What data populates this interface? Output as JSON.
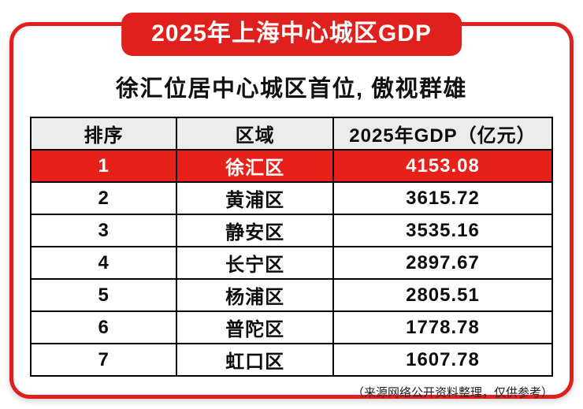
{
  "banner": {
    "title": "2025年上海中心城区GDP"
  },
  "subtitle": "徐汇位居中心城区首位, 傲视群雄",
  "table": {
    "headers": [
      "排序",
      "区域",
      "2025年GDP（亿元）"
    ],
    "rows": [
      {
        "rank": "1",
        "district": "徐汇区",
        "gdp": "4153.08"
      },
      {
        "rank": "2",
        "district": "黄浦区",
        "gdp": "3615.72"
      },
      {
        "rank": "3",
        "district": "静安区",
        "gdp": "3535.16"
      },
      {
        "rank": "4",
        "district": "长宁区",
        "gdp": "2897.67"
      },
      {
        "rank": "5",
        "district": "杨浦区",
        "gdp": "2805.51"
      },
      {
        "rank": "6",
        "district": "普陀区",
        "gdp": "1778.78"
      },
      {
        "rank": "7",
        "district": "虹口区",
        "gdp": "1607.78"
      }
    ]
  },
  "footer": {
    "note": "（来源网络公开资料整理，仅供参考）"
  },
  "colors": {
    "accent": "#e0201d",
    "highlight_row_bg": "#e8201a",
    "header_bg": "#ececec",
    "table_border": "#000000",
    "highlight_text": "#ffffff"
  },
  "chart_data": {
    "type": "table",
    "title": "2025年上海中心城区GDP",
    "subtitle": "徐汇位居中心城区首位, 傲视群雄",
    "columns": [
      "排序",
      "区域",
      "2025年GDP（亿元）"
    ],
    "categories": [
      "徐汇区",
      "黄浦区",
      "静安区",
      "长宁区",
      "杨浦区",
      "普陀区",
      "虹口区"
    ],
    "values": [
      4153.08,
      3615.72,
      3535.16,
      2897.67,
      2805.51,
      1778.78,
      1607.78
    ],
    "ranks": [
      1,
      2,
      3,
      4,
      5,
      6,
      7
    ],
    "highlighted_row": "徐汇区",
    "note": "（来源网络公开资料整理，仅供参考）"
  }
}
